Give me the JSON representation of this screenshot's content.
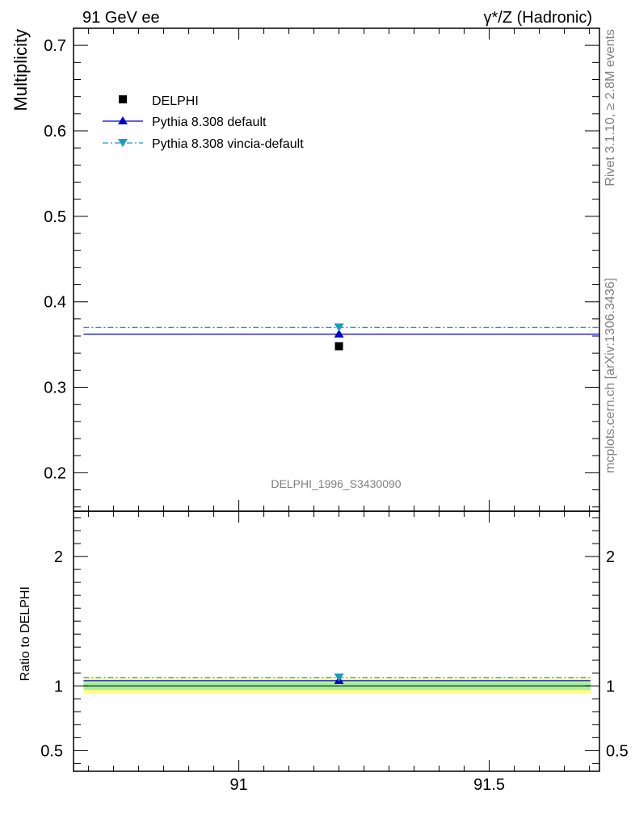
{
  "header": {
    "left": "91 GeV ee",
    "right_symbol": "γ*/Z",
    "right_text": " (Hadronic)"
  },
  "side": {
    "rivet": "Rivet 3.1.10, ≥ 2.8M events",
    "mcplots": "mcplots.cern.ch [arXiv:1306.3436]"
  },
  "chart_data": [
    {
      "type": "scatter",
      "ylabel": "Multiplicity",
      "analysis_label": "DELPHI_1996_S3430090",
      "x_range": [
        90.67,
        91.72
      ],
      "x_ticks": [
        "91",
        "91.5"
      ],
      "x_tick_values": [
        91.0,
        91.5
      ],
      "ylim": [
        0.155,
        0.72
      ],
      "y_ticks": [
        "0.2",
        "0.3",
        "0.4",
        "0.5",
        "0.6",
        "0.7"
      ],
      "y_tick_values": [
        0.2,
        0.3,
        0.4,
        0.5,
        0.6,
        0.7
      ],
      "legend_position": "top-left",
      "series": [
        {
          "name": "DELPHI",
          "marker": "square",
          "color": "#000000",
          "x": [
            91.2
          ],
          "y": [
            0.348
          ]
        },
        {
          "name": "Pythia 8.308 default",
          "marker": "triangle-up",
          "color": "#0000cc",
          "line": "solid",
          "x_span": [
            90.69,
            91.72
          ],
          "x": [
            91.2
          ],
          "y": [
            0.362
          ]
        },
        {
          "name": "Pythia 8.308 vincia-default",
          "marker": "triangle-down",
          "color": "#1a9bbf",
          "line": "dash-dot",
          "x_span": [
            90.69,
            91.72
          ],
          "x": [
            91.2
          ],
          "y": [
            0.37
          ]
        }
      ]
    },
    {
      "type": "scatter",
      "ylabel": "Ratio to DELPHI",
      "x_range": [
        90.67,
        91.72
      ],
      "x_ticks": [
        "91",
        "91.5"
      ],
      "x_tick_values": [
        91.0,
        91.5
      ],
      "ylim": [
        0.34,
        2.35
      ],
      "y_ticks": [
        "0.5",
        "1",
        "2"
      ],
      "y_tick_values": [
        0.5,
        1.0,
        2.0
      ],
      "bands": [
        {
          "color": "#ffff80",
          "low": 0.94,
          "high": 1.06
        },
        {
          "color": "#a0f0a0",
          "low": 0.97,
          "high": 1.03
        }
      ],
      "series": [
        {
          "name": "Pythia 8.308 default",
          "color": "#0000cc",
          "x": [
            91.2
          ],
          "y": [
            1.04
          ]
        },
        {
          "name": "Pythia 8.308 vincia-default",
          "color": "#1a9bbf",
          "x": [
            91.2
          ],
          "y": [
            1.065
          ]
        }
      ]
    }
  ]
}
